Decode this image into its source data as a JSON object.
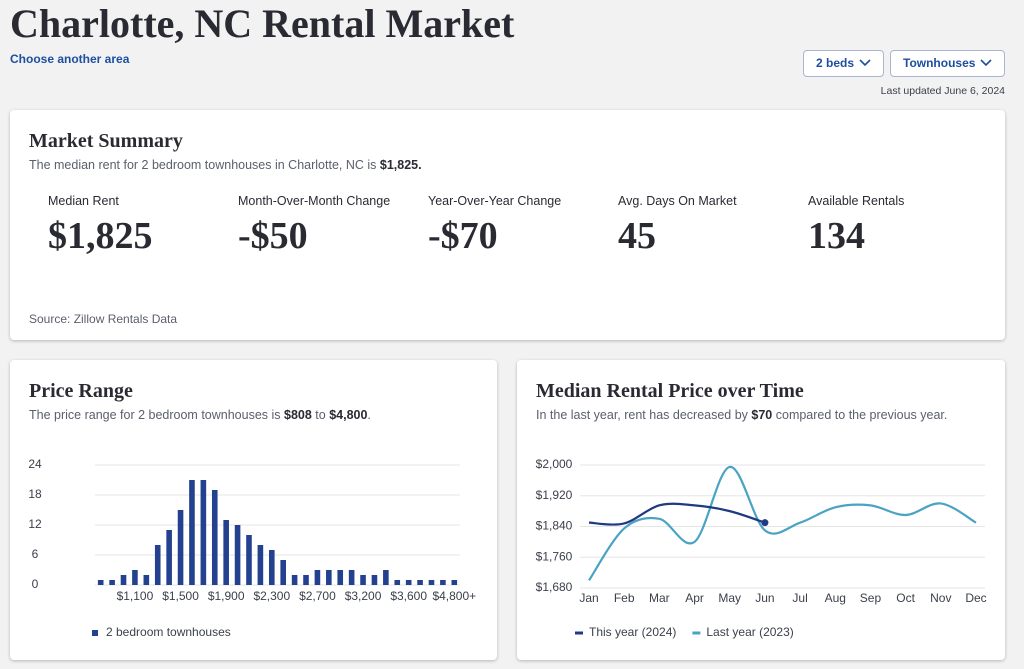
{
  "header": {
    "title": "Charlotte, NC Rental Market",
    "link": "Choose another area",
    "filters": [
      "2 beds",
      "Townhouses"
    ],
    "updated": "Last updated June 6, 2024"
  },
  "summary": {
    "title": "Market Summary",
    "subtitle": [
      {
        "text": "The median rent for 2 bedroom townhouses in Charlotte, NC is ",
        "bold": false
      },
      {
        "text": "$1,825.",
        "bold": true
      }
    ],
    "metrics": [
      {
        "label": "Median Rent",
        "value": "$1,825"
      },
      {
        "label": "Month-Over-Month Change",
        "value": "-$50"
      },
      {
        "label": "Year-Over-Year Change",
        "value": "-$70"
      },
      {
        "label": "Avg. Days On Market",
        "value": "45"
      },
      {
        "label": "Available Rentals",
        "value": "134"
      }
    ],
    "source": "Source: Zillow Rentals Data"
  },
  "chart_data": [
    {
      "type": "bar",
      "title": "Price Range",
      "subtitle": [
        {
          "text": "The price range for 2 bedroom townhouses is ",
          "bold": false
        },
        {
          "text": "$808",
          "bold": true
        },
        {
          "text": " to ",
          "bold": false
        },
        {
          "text": "$4,800",
          "bold": true
        },
        {
          "text": ".",
          "bold": false
        }
      ],
      "categories": [
        null,
        null,
        null,
        "$1,100",
        null,
        null,
        null,
        "$1,500",
        null,
        null,
        null,
        "$1,900",
        null,
        null,
        null,
        "$2,300",
        null,
        null,
        null,
        "$2,700",
        null,
        null,
        null,
        "$3,200",
        null,
        null,
        null,
        "$3,600",
        null,
        null,
        null,
        "$4,800+"
      ],
      "series": [
        {
          "name": "2 bedroom townhouses",
          "color": "#23418f",
          "values": [
            1,
            1,
            2,
            3,
            2,
            8,
            11,
            15,
            21,
            21,
            19,
            13,
            12,
            10,
            8,
            7,
            5,
            2,
            2,
            3,
            3,
            3,
            3,
            2,
            2,
            3,
            1,
            1,
            1,
            1,
            1,
            1
          ]
        }
      ],
      "ylim": [
        0,
        24
      ],
      "yticks": [
        0,
        6,
        12,
        18,
        24
      ],
      "grid": true
    },
    {
      "type": "line",
      "title": "Median Rental Price over Time",
      "subtitle": [
        {
          "text": "In the last year, rent has decreased by ",
          "bold": false
        },
        {
          "text": "$70",
          "bold": true
        },
        {
          "text": " compared to the previous year.",
          "bold": false
        }
      ],
      "categories": [
        "Jan",
        "Feb",
        "Mar",
        "Apr",
        "May",
        "Jun",
        "Jul",
        "Aug",
        "Sep",
        "Oct",
        "Nov",
        "Dec"
      ],
      "series": [
        {
          "name": "This year (2024)",
          "color": "#1f3a82",
          "values": [
            1850,
            1848,
            1895,
            1895,
            1880,
            1850,
            null,
            null,
            null,
            null,
            null,
            null
          ]
        },
        {
          "name": "Last year (2023)",
          "color": "#4aa3c4",
          "values": [
            1700,
            1835,
            1860,
            1800,
            1995,
            1830,
            1850,
            1890,
            1895,
            1870,
            1900,
            1850
          ]
        }
      ],
      "ylim": [
        1680,
        2000
      ],
      "yticks": [
        {
          "value": 1680,
          "label": "$1,680"
        },
        {
          "value": 1760,
          "label": "$1,760"
        },
        {
          "value": 1840,
          "label": "$1,840"
        },
        {
          "value": 1920,
          "label": "$1,920"
        },
        {
          "value": 2000,
          "label": "$2,000"
        }
      ],
      "grid": true
    }
  ]
}
